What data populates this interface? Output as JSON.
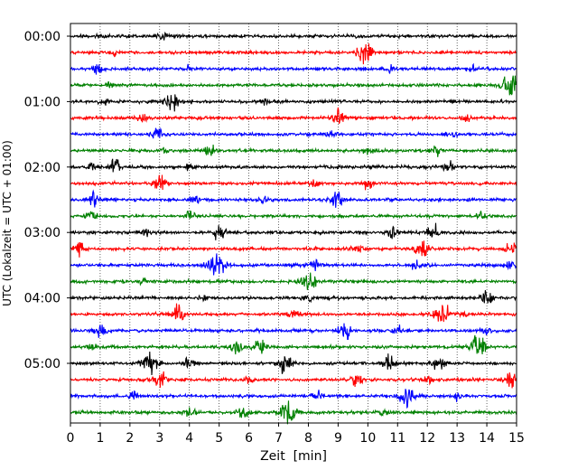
{
  "chart_data": {
    "type": "line",
    "subtype": "helicorder",
    "xlabel": "Zeit  [min]",
    "ylabel": "UTC (Lokalzeit = UTC + 01:00)",
    "xlim": [
      0,
      15
    ],
    "x_ticks": [
      "0",
      "1",
      "2",
      "3",
      "4",
      "5",
      "6",
      "7",
      "8",
      "9",
      "10",
      "11",
      "12",
      "13",
      "14",
      "15"
    ],
    "y_ticks": [
      "00:00",
      "01:00",
      "02:00",
      "03:00",
      "04:00",
      "05:00"
    ],
    "vertical_gridlines": "dotted, every 1 min",
    "trace_minutes": 15,
    "trace_colors": [
      "#000000",
      "#ff0000",
      "#0000ff",
      "#008000"
    ],
    "traces": [
      {
        "start": "00:00",
        "color": "#000000",
        "bursts": [
          [
            3.1,
            0.4
          ],
          [
            9.5,
            0.3
          ]
        ]
      },
      {
        "start": "00:15",
        "color": "#ff0000",
        "bursts": [
          [
            9.9,
            1.6
          ],
          [
            1.5,
            0.4
          ]
        ]
      },
      {
        "start": "00:30",
        "color": "#0000ff",
        "bursts": [
          [
            0.9,
            0.6
          ],
          [
            4.0,
            0.4
          ],
          [
            10.8,
            0.5
          ],
          [
            13.5,
            0.4
          ]
        ]
      },
      {
        "start": "00:45",
        "color": "#008000",
        "bursts": [
          [
            14.8,
            1.8
          ],
          [
            1.3,
            0.3
          ]
        ]
      },
      {
        "start": "01:00",
        "color": "#000000",
        "bursts": [
          [
            3.4,
            1.2
          ],
          [
            1.1,
            0.4
          ],
          [
            6.5,
            0.4
          ]
        ]
      },
      {
        "start": "01:15",
        "color": "#ff0000",
        "bursts": [
          [
            9.0,
            1.0
          ],
          [
            2.4,
            0.6
          ],
          [
            13.3,
            0.4
          ]
        ]
      },
      {
        "start": "01:30",
        "color": "#0000ff",
        "bursts": [
          [
            2.9,
            0.9
          ],
          [
            8.7,
            0.5
          ],
          [
            12.8,
            0.5
          ]
        ]
      },
      {
        "start": "01:45",
        "color": "#008000",
        "bursts": [
          [
            4.7,
            0.8
          ],
          [
            3.2,
            0.5
          ],
          [
            10.0,
            0.5
          ],
          [
            12.3,
            0.6
          ]
        ]
      },
      {
        "start": "02:00",
        "color": "#000000",
        "bursts": [
          [
            1.5,
            1.0
          ],
          [
            0.7,
            0.5
          ],
          [
            4.0,
            0.5
          ],
          [
            12.7,
            0.6
          ]
        ]
      },
      {
        "start": "02:15",
        "color": "#ff0000",
        "bursts": [
          [
            3.0,
            1.1
          ],
          [
            8.2,
            0.6
          ],
          [
            10.0,
            0.7
          ]
        ]
      },
      {
        "start": "02:30",
        "color": "#0000ff",
        "bursts": [
          [
            0.8,
            1.0
          ],
          [
            8.9,
            1.2
          ],
          [
            4.2,
            0.5
          ],
          [
            6.5,
            0.5
          ]
        ]
      },
      {
        "start": "02:45",
        "color": "#008000",
        "bursts": [
          [
            0.7,
            0.7
          ],
          [
            4.0,
            0.6
          ],
          [
            13.8,
            0.5
          ]
        ]
      },
      {
        "start": "03:00",
        "color": "#000000",
        "bursts": [
          [
            5.0,
            1.0
          ],
          [
            10.9,
            0.9
          ],
          [
            12.2,
            1.1
          ],
          [
            2.5,
            0.5
          ]
        ]
      },
      {
        "start": "03:15",
        "color": "#ff0000",
        "bursts": [
          [
            11.8,
            1.2
          ],
          [
            0.3,
            0.9
          ],
          [
            14.8,
            1.0
          ],
          [
            9.7,
            0.5
          ]
        ]
      },
      {
        "start": "03:30",
        "color": "#0000ff",
        "bursts": [
          [
            4.9,
            1.7
          ],
          [
            8.2,
            0.8
          ],
          [
            11.6,
            0.6
          ],
          [
            14.8,
            0.6
          ]
        ]
      },
      {
        "start": "03:45",
        "color": "#008000",
        "bursts": [
          [
            8.0,
            1.4
          ],
          [
            2.5,
            0.5
          ]
        ]
      },
      {
        "start": "04:00",
        "color": "#000000",
        "bursts": [
          [
            8.0,
            0.6
          ],
          [
            14.0,
            0.8
          ],
          [
            4.5,
            0.4
          ]
        ]
      },
      {
        "start": "04:15",
        "color": "#ff0000",
        "bursts": [
          [
            3.6,
            1.2
          ],
          [
            12.5,
            1.5
          ],
          [
            7.5,
            0.6
          ],
          [
            13.2,
            0.6
          ]
        ]
      },
      {
        "start": "04:30",
        "color": "#0000ff",
        "bursts": [
          [
            1.0,
            1.0
          ],
          [
            9.2,
            1.0
          ],
          [
            11.0,
            0.6
          ],
          [
            14.0,
            0.5
          ]
        ]
      },
      {
        "start": "04:45",
        "color": "#008000",
        "bursts": [
          [
            13.7,
            1.7
          ],
          [
            5.6,
            1.0
          ],
          [
            6.4,
            1.0
          ],
          [
            0.7,
            0.5
          ]
        ]
      },
      {
        "start": "05:00",
        "color": "#000000",
        "bursts": [
          [
            2.7,
            1.7
          ],
          [
            7.2,
            1.4
          ],
          [
            10.7,
            1.0
          ],
          [
            12.4,
            1.0
          ],
          [
            4.0,
            0.7
          ]
        ]
      },
      {
        "start": "05:15",
        "color": "#ff0000",
        "bursts": [
          [
            3.0,
            1.1
          ],
          [
            9.6,
            0.8
          ],
          [
            14.8,
            1.0
          ],
          [
            6.0,
            0.5
          ],
          [
            12.0,
            0.6
          ]
        ]
      },
      {
        "start": "05:30",
        "color": "#0000ff",
        "bursts": [
          [
            11.3,
            1.3
          ],
          [
            2.2,
            0.8
          ],
          [
            8.3,
            0.7
          ],
          [
            13.0,
            0.5
          ]
        ]
      },
      {
        "start": "05:45",
        "color": "#008000",
        "bursts": [
          [
            7.3,
            1.8
          ],
          [
            4.0,
            0.9
          ],
          [
            5.8,
            0.8
          ],
          [
            10.5,
            0.5
          ]
        ]
      }
    ]
  }
}
